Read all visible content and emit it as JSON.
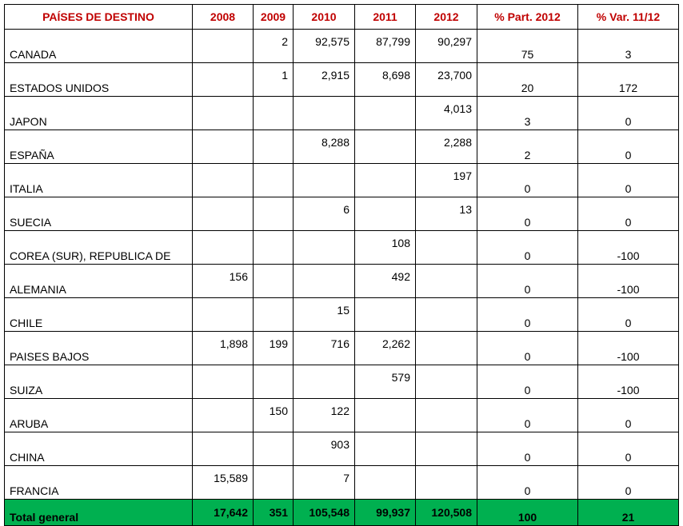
{
  "table": {
    "headers": [
      "PAÍSES DE DESTINO",
      "2008",
      "2009",
      "2010",
      "2011",
      "2012",
      "% Part. 2012",
      "% Var. 11/12"
    ],
    "rows": [
      {
        "country": "CANADA",
        "y2008": "",
        "y2009": "2",
        "y2010": "92,575",
        "y2011": "87,799",
        "y2012": "90,297",
        "part": "75",
        "var": "3"
      },
      {
        "country": "ESTADOS UNIDOS",
        "y2008": "",
        "y2009": "1",
        "y2010": "2,915",
        "y2011": "8,698",
        "y2012": "23,700",
        "part": "20",
        "var": "172"
      },
      {
        "country": "JAPON",
        "y2008": "",
        "y2009": "",
        "y2010": "",
        "y2011": "",
        "y2012": "4,013",
        "part": "3",
        "var": "0"
      },
      {
        "country": "ESPAÑA",
        "y2008": "",
        "y2009": "",
        "y2010": "8,288",
        "y2011": "",
        "y2012": "2,288",
        "part": "2",
        "var": "0"
      },
      {
        "country": "ITALIA",
        "y2008": "",
        "y2009": "",
        "y2010": "",
        "y2011": "",
        "y2012": "197",
        "part": "0",
        "var": "0"
      },
      {
        "country": "SUECIA",
        "y2008": "",
        "y2009": "",
        "y2010": "6",
        "y2011": "",
        "y2012": "13",
        "part": "0",
        "var": "0"
      },
      {
        "country": "COREA (SUR), REPUBLICA DE",
        "y2008": "",
        "y2009": "",
        "y2010": "",
        "y2011": "108",
        "y2012": "",
        "part": "0",
        "var": "-100"
      },
      {
        "country": "ALEMANIA",
        "y2008": "156",
        "y2009": "",
        "y2010": "",
        "y2011": "492",
        "y2012": "",
        "part": "0",
        "var": "-100"
      },
      {
        "country": "CHILE",
        "y2008": "",
        "y2009": "",
        "y2010": "15",
        "y2011": "",
        "y2012": "",
        "part": "0",
        "var": "0"
      },
      {
        "country": "PAISES BAJOS",
        "y2008": "1,898",
        "y2009": "199",
        "y2010": "716",
        "y2011": "2,262",
        "y2012": "",
        "part": "0",
        "var": "-100"
      },
      {
        "country": "SUIZA",
        "y2008": "",
        "y2009": "",
        "y2010": "",
        "y2011": "579",
        "y2012": "",
        "part": "0",
        "var": "-100"
      },
      {
        "country": "ARUBA",
        "y2008": "",
        "y2009": "150",
        "y2010": "122",
        "y2011": "",
        "y2012": "",
        "part": "0",
        "var": "0"
      },
      {
        "country": "CHINA",
        "y2008": "",
        "y2009": "",
        "y2010": "903",
        "y2011": "",
        "y2012": "",
        "part": "0",
        "var": "0"
      },
      {
        "country": "FRANCIA",
        "y2008": "15,589",
        "y2009": "",
        "y2010": "7",
        "y2011": "",
        "y2012": "",
        "part": "0",
        "var": "0"
      }
    ],
    "total": {
      "country": "Total general",
      "y2008": "17,642",
      "y2009": "351",
      "y2010": "105,548",
      "y2011": "99,937",
      "y2012": "120,508",
      "part": "100",
      "var": "21"
    }
  },
  "colors": {
    "header_text": "#c00000",
    "total_background": "#00b050",
    "border": "#000000"
  }
}
